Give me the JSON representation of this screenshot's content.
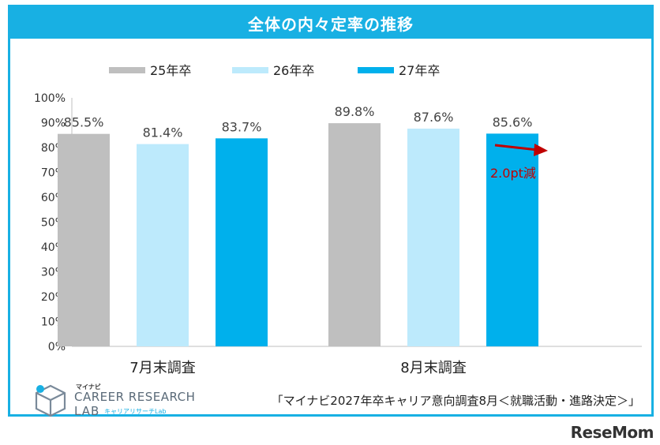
{
  "header": {
    "title": "全体の内々定率の推移"
  },
  "chart_data": {
    "type": "bar",
    "categories": [
      "7月末調査",
      "8月末調査"
    ],
    "series": [
      {
        "name": "25年卒",
        "values": [
          85.5,
          89.8
        ],
        "labels": [
          "85.5%",
          "89.8%"
        ],
        "color": "#bfbfbf"
      },
      {
        "name": "26年卒",
        "values": [
          81.4,
          87.6
        ],
        "labels": [
          "81.4%",
          "87.6%"
        ],
        "color": "#bdeafc"
      },
      {
        "name": "27年卒",
        "values": [
          83.7,
          85.6
        ],
        "labels": [
          "83.7%",
          "85.6%"
        ],
        "color": "#00b0ec"
      }
    ],
    "ylim": [
      0,
      100
    ],
    "yticks": [
      "0%",
      "10%",
      "20%",
      "30%",
      "40%",
      "50%",
      "60%",
      "70%",
      "80%",
      "90%",
      "100%"
    ],
    "legend_position": "top",
    "grid": false,
    "annotation": {
      "text": "2.0pt減",
      "color": "#c00000"
    }
  },
  "footer": {
    "source": "「マイナビ2027年卒キャリア意向調査8月＜就職活動・進路決定＞」",
    "logo": {
      "kana": "マイナビ",
      "line1": "CAREER RESEARCH",
      "line2": "LAB",
      "sub": "キャリアリサーチLab"
    }
  },
  "watermark": "ReseMom"
}
